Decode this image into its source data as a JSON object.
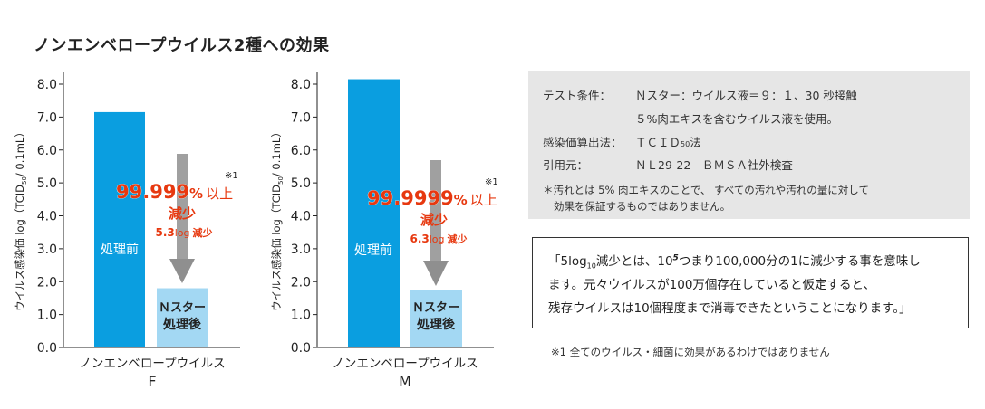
{
  "title": "ノンエンベロープウイルス2種への効果",
  "colors": {
    "before": "#0a9ee0",
    "after": "#a3d8f3",
    "arrow": "#8f8f8f",
    "red": "#e7380f"
  },
  "chart_data": [
    {
      "type": "bar",
      "categories": [
        "処理前",
        "Ｎスター処理後"
      ],
      "values": [
        7.15,
        1.8
      ],
      "ylim": [
        0,
        8
      ],
      "yticks": [
        "0.0",
        "1.0",
        "2.0",
        "3.0",
        "4.0",
        "5.0",
        "6.0",
        "7.0",
        "8.0"
      ],
      "ylabel_main": "ウイルス感染価 log（TCID",
      "ylabel_sub": "50",
      "ylabel_tail": "/ 0.1mL）",
      "xlabel": "ノンエンベロープウイルス",
      "xsub": "F",
      "bar_before_label": "処理前",
      "bar_after_label_1": "Ｎスター",
      "bar_after_label_2": "処理後",
      "reduction_pct": "99.999",
      "pct_sign": "%",
      "pct_suffix": "以上",
      "reduction_word": "減少",
      "reduction_log_value": "5.3",
      "reduction_log_unit": "log",
      "reduction_log_word": "減少",
      "footnote_mark": "※1"
    },
    {
      "type": "bar",
      "categories": [
        "処理前",
        "Ｎスター処理後"
      ],
      "values": [
        8.15,
        1.75
      ],
      "ylim": [
        0,
        8
      ],
      "yticks": [
        "0.0",
        "1.0",
        "2.0",
        "3.0",
        "4.0",
        "5.0",
        "6.0",
        "7.0",
        "8.0"
      ],
      "ylabel_main": "ウイルス感染価 log（TCID",
      "ylabel_sub": "50",
      "ylabel_tail": "/ 0.1mL）",
      "xlabel": "ノンエンベロープウイルス",
      "xsub": "M",
      "bar_before_label": "処理前",
      "bar_after_label_1": "Ｎスター",
      "bar_after_label_2": "処理後",
      "reduction_pct": "99.9999",
      "pct_sign": "%",
      "pct_suffix": "以上",
      "reduction_word": "減少",
      "reduction_log_value": "6.3",
      "reduction_log_unit": "log",
      "reduction_log_word": "減少",
      "footnote_mark": "※1"
    }
  ],
  "info": {
    "test_label": "テスト条件：",
    "test_value_1": "Ｎスター：ウイルス液＝９：１、30 秒接触",
    "test_value_2": "５%肉エキスを含むウイルス液を使用。",
    "method_label": "感染価算出法：",
    "method_value_a": "ＴＣＩＤ",
    "method_value_sub": "50",
    "method_value_b": "法",
    "source_label": "引用元：",
    "source_value": "ＮＬ29-22　ＢＭＳＡ社外検査",
    "note_1": "＊汚れとは 5% 肉エキスのことで、 すべての汚れや汚れの量に対して",
    "note_2": "効果を保証するものではありません。"
  },
  "explain": {
    "l1_a": "「5log",
    "l1_sub": "10",
    "l1_b": "減少とは、10",
    "l1_sup": "5",
    "l1_c": "つまり100,000分の1に減少する事を意味し",
    "l2": "ます。元々ウイルスが100万個存在していると仮定すると、",
    "l3": "残存ウイルスは10個程度まで消毒できたということになります。」"
  },
  "footnote": "※1 全てのウイルス・細菌に効果があるわけではありません"
}
